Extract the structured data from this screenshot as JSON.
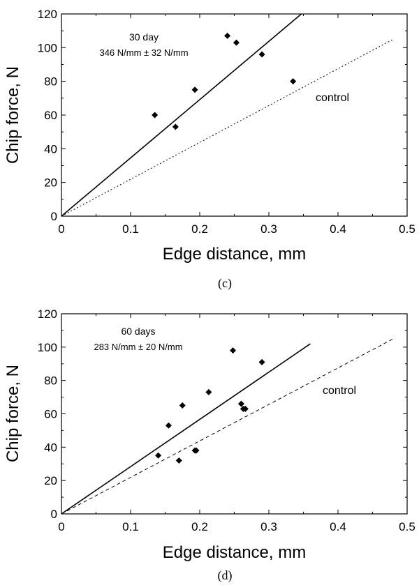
{
  "chart_data": [
    {
      "type": "scatter",
      "caption": "(c)",
      "xlabel": "Edge distance, mm",
      "ylabel": "Chip force, N",
      "xlim": [
        0,
        0.5
      ],
      "ylim": [
        0,
        120
      ],
      "xticks": [
        "0",
        "0.1",
        "0.2",
        "0.3",
        "0.4",
        "0.5"
      ],
      "yticks": [
        "0",
        "20",
        "40",
        "60",
        "80",
        "100",
        "120"
      ],
      "annotation_title": "30 day",
      "annotation_value": "346 N/mm ± 32 N/mm",
      "control_label": "control",
      "points": [
        {
          "x": 0.135,
          "y": 60
        },
        {
          "x": 0.165,
          "y": 53
        },
        {
          "x": 0.193,
          "y": 75
        },
        {
          "x": 0.24,
          "y": 107
        },
        {
          "x": 0.253,
          "y": 103
        },
        {
          "x": 0.29,
          "y": 96
        },
        {
          "x": 0.335,
          "y": 80
        }
      ],
      "fit_line": {
        "style": "solid",
        "x": [
          0,
          0.347
        ],
        "y": [
          0,
          120
        ]
      },
      "control_line": {
        "style": "dotted",
        "x": [
          0,
          0.48
        ],
        "y": [
          0,
          105
        ]
      }
    },
    {
      "type": "scatter",
      "caption": "(d)",
      "xlabel": "Edge distance, mm",
      "ylabel": "Chip force, N",
      "xlim": [
        0,
        0.5
      ],
      "ylim": [
        0,
        120
      ],
      "xticks": [
        "0",
        "0.1",
        "0.2",
        "0.3",
        "0.4",
        "0.5"
      ],
      "yticks": [
        "0",
        "20",
        "40",
        "60",
        "80",
        "100",
        "120"
      ],
      "annotation_title": "60 days",
      "annotation_value": "283 N/mm ± 20 N/mm",
      "control_label": "control",
      "points": [
        {
          "x": 0.14,
          "y": 35
        },
        {
          "x": 0.155,
          "y": 53
        },
        {
          "x": 0.17,
          "y": 32
        },
        {
          "x": 0.175,
          "y": 65
        },
        {
          "x": 0.193,
          "y": 38
        },
        {
          "x": 0.195,
          "y": 38
        },
        {
          "x": 0.213,
          "y": 73
        },
        {
          "x": 0.248,
          "y": 98
        },
        {
          "x": 0.26,
          "y": 66
        },
        {
          "x": 0.263,
          "y": 63
        },
        {
          "x": 0.266,
          "y": 63
        },
        {
          "x": 0.29,
          "y": 91
        }
      ],
      "fit_line": {
        "style": "solid",
        "x": [
          0,
          0.36
        ],
        "y": [
          0,
          102
        ]
      },
      "control_line": {
        "style": "dashed",
        "x": [
          0,
          0.48
        ],
        "y": [
          0,
          105
        ]
      }
    }
  ]
}
